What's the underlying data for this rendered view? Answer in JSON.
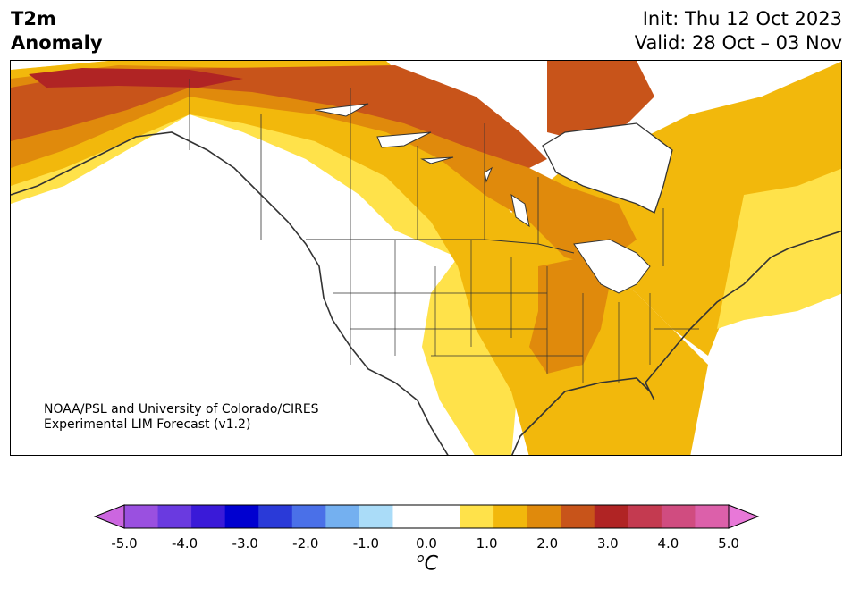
{
  "header": {
    "title_line1": "T2m",
    "title_line2": "Anomaly",
    "init": "Init: Thu 12 Oct 2023",
    "valid": "Valid: 28 Oct – 03 Nov"
  },
  "credit": {
    "line1": "NOAA/PSL and University of Colorado/CIRES",
    "line2": "Experimental LIM Forecast (v1.2)"
  },
  "colorbar": {
    "unit_base": "C",
    "unit_super": "o",
    "ticks": [
      "-5.0",
      "-4.0",
      "-3.0",
      "-2.0",
      "-1.0",
      "0.0",
      "1.0",
      "2.0",
      "3.0",
      "4.0",
      "5.0"
    ],
    "colors": [
      "#cc66e0",
      "#9a50e0",
      "#6a3ae0",
      "#3a1ad8",
      "#0000d0",
      "#2a3ad8",
      "#4a70e8",
      "#74b0f0",
      "#aadcf8",
      "#ffffff",
      "#ffffff",
      "#ffe24a",
      "#f2b80c",
      "#e08a0c",
      "#c8541a",
      "#b02424",
      "#c43a50",
      "#d04c80",
      "#dc60aa",
      "#e878d8"
    ]
  },
  "map_colors": {
    "neutral": "#ffffff",
    "c1": "#ffe24a",
    "c2": "#f2b80c",
    "c3": "#e08a0c",
    "c4": "#c8541a",
    "c5": "#b02424",
    "border": "#333333"
  }
}
